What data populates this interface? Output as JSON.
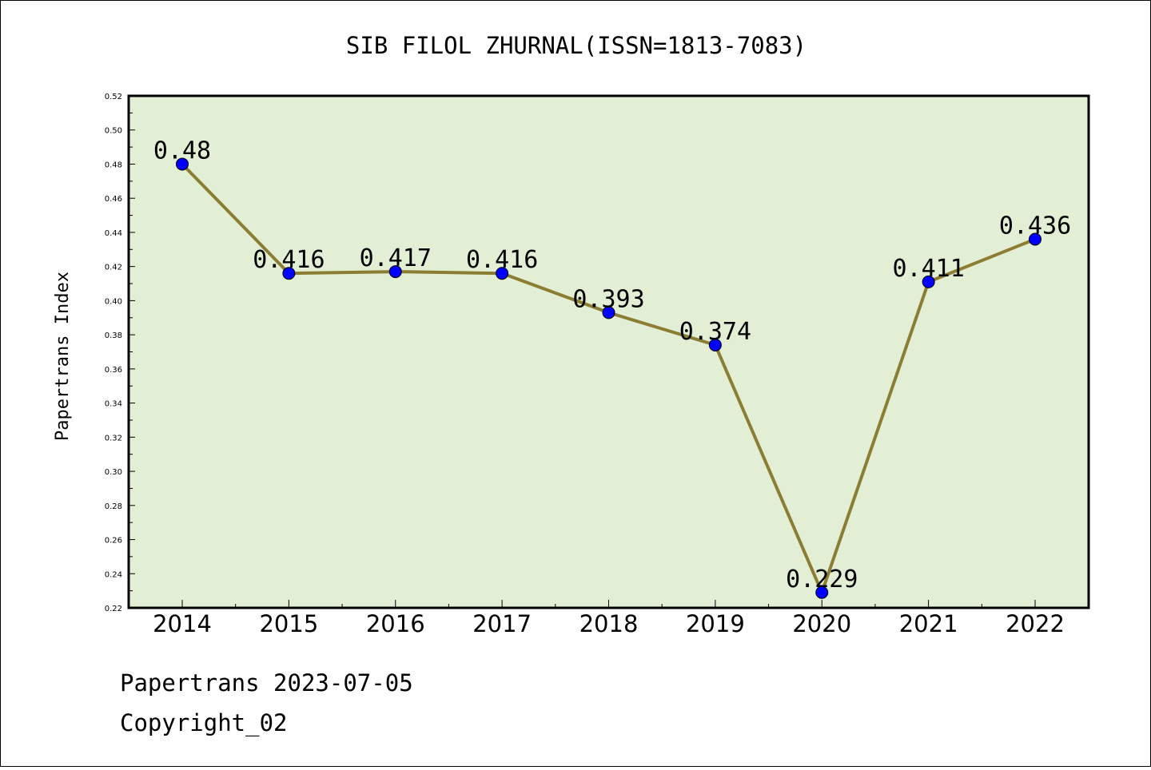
{
  "chart_data": {
    "type": "line",
    "title": "SIB FILOL ZHURNAL(ISSN=1813-7083)",
    "xlabel": "",
    "ylabel": "Papertrans Index",
    "categories": [
      "2014",
      "2015",
      "2016",
      "2017",
      "2018",
      "2019",
      "2020",
      "2021",
      "2022"
    ],
    "series": [
      {
        "values": [
          0.48,
          0.416,
          0.417,
          0.416,
          0.393,
          0.374,
          0.229,
          0.411,
          0.436
        ],
        "labels": [
          "0.48",
          "0.416",
          "0.417",
          "0.416",
          "0.393",
          "0.374",
          "0.229",
          "0.411",
          "0.436"
        ]
      }
    ],
    "ylim": [
      0.22,
      0.52
    ],
    "yticks": [
      "0.22",
      "0.24",
      "0.26",
      "0.28",
      "0.30",
      "0.32",
      "0.34",
      "0.36",
      "0.38",
      "0.40",
      "0.42",
      "0.44",
      "0.46",
      "0.48",
      "0.50",
      "0.52"
    ],
    "grid": false,
    "colors": {
      "plot_background": "#e2efd5",
      "line": "#8b7d33",
      "marker": "#0000ff"
    }
  },
  "footer": {
    "line1": "Papertrans 2023-07-05",
    "line2": "Copyright_02"
  }
}
